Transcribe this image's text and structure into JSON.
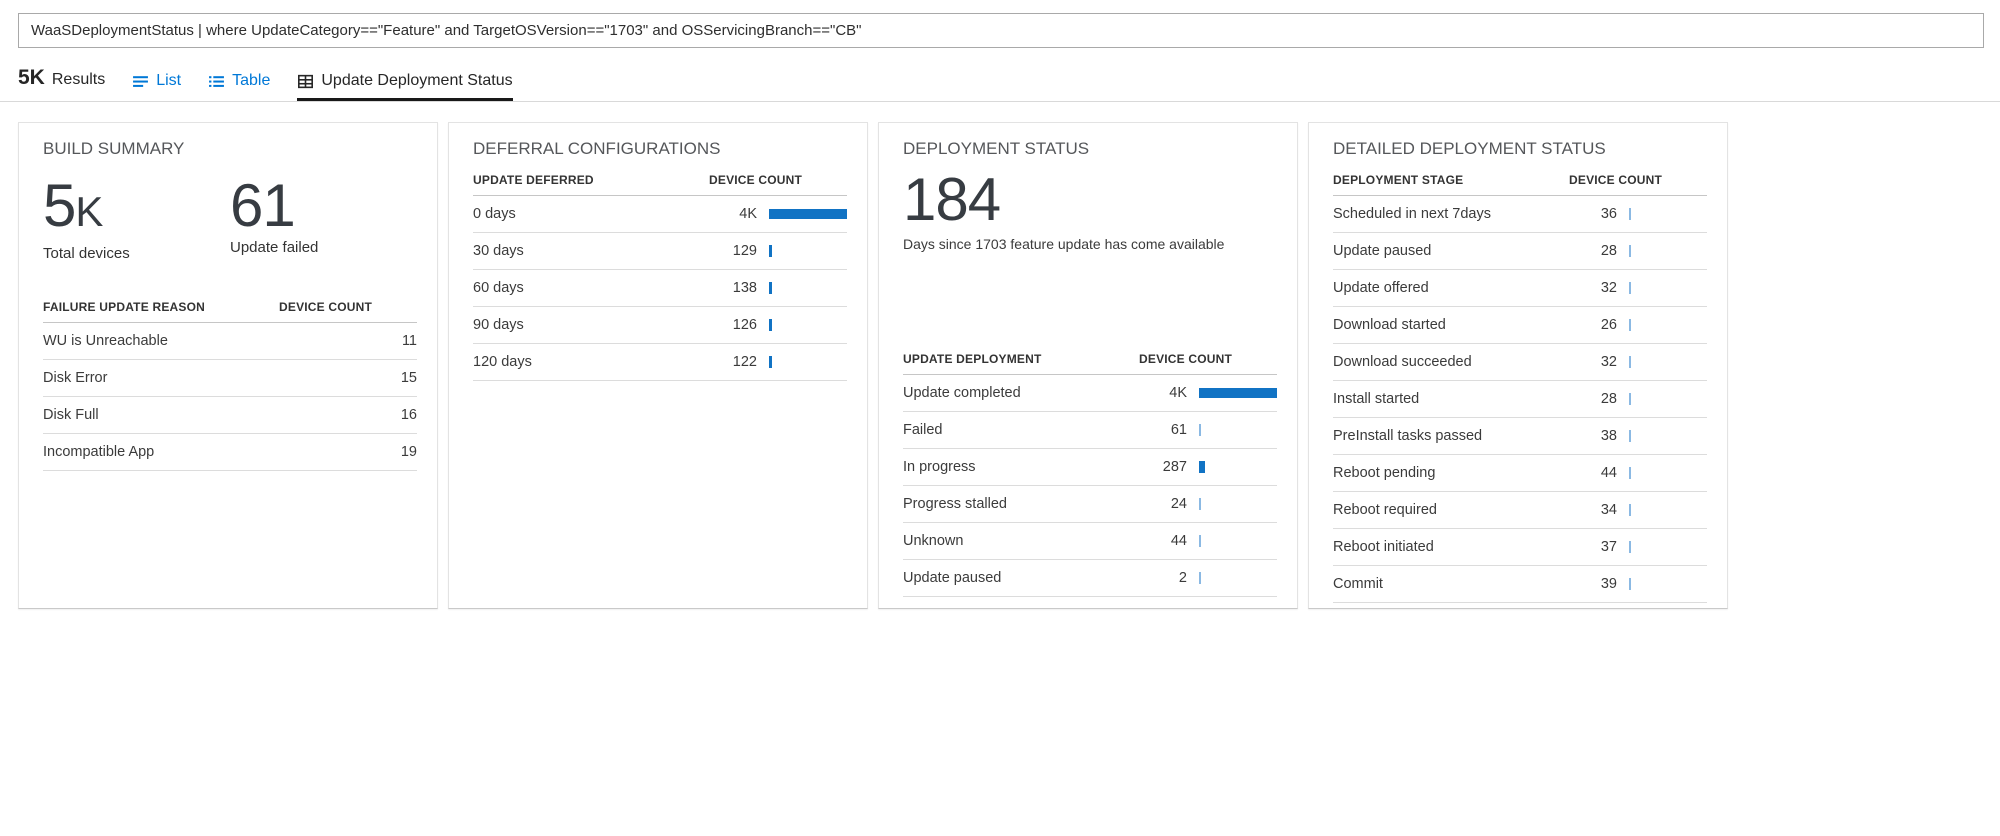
{
  "query_bar": {
    "query": "WaaSDeploymentStatus | where UpdateCategory==\"Feature\" and TargetOSVersion==\"1703\" and OSServicingBranch==\"CB\""
  },
  "tabs": {
    "results_count": "5K",
    "results_label": "Results",
    "list_label": "List",
    "table_label": "Table",
    "active_tab_label": "Update Deployment Status"
  },
  "colors": {
    "accent_blue": "#0078d7",
    "bar_blue": "#1173c4",
    "bar_blue_light": "#8bb9e3",
    "active_tab_underline": "#191919"
  },
  "bar_scale_max": 4000,
  "panels": {
    "build_summary": {
      "title": "BUILD SUMMARY",
      "metrics": [
        {
          "value": "5K",
          "label": "Total devices"
        },
        {
          "value": "61",
          "label": "Update failed"
        }
      ],
      "table": {
        "bars": false,
        "headers": [
          "FAILURE UPDATE REASON",
          "DEVICE COUNT"
        ],
        "rows": [
          {
            "label": "WU is Unreachable",
            "count": "11"
          },
          {
            "label": "Disk Error",
            "count": "15"
          },
          {
            "label": "Disk Full",
            "count": "16"
          },
          {
            "label": "Incompatible App",
            "count": "19"
          }
        ]
      }
    },
    "deferral_configurations": {
      "title": "DEFERRAL CONFIGURATIONS",
      "table": {
        "bars": true,
        "headers": [
          "UPDATE DEFERRED",
          "DEVICE COUNT"
        ],
        "rows": [
          {
            "label": "0 days",
            "count": "4K",
            "value": 4000
          },
          {
            "label": "30 days",
            "count": "129",
            "value": 129
          },
          {
            "label": "60 days",
            "count": "138",
            "value": 138
          },
          {
            "label": "90 days",
            "count": "126",
            "value": 126
          },
          {
            "label": "120 days",
            "count": "122",
            "value": 122
          }
        ]
      }
    },
    "deployment_status": {
      "title": "DEPLOYMENT STATUS",
      "big_number": "184",
      "caption": "Days since 1703 feature update has come available",
      "table": {
        "bars": true,
        "headers": [
          "UPDATE DEPLOYMENT",
          "DEVICE COUNT"
        ],
        "rows": [
          {
            "label": "Update completed",
            "count": "4K",
            "value": 4000
          },
          {
            "label": "Failed",
            "count": "61",
            "value": 61
          },
          {
            "label": "In progress",
            "count": "287",
            "value": 287
          },
          {
            "label": "Progress stalled",
            "count": "24",
            "value": 24
          },
          {
            "label": "Unknown",
            "count": "44",
            "value": 44
          },
          {
            "label": "Update paused",
            "count": "2",
            "value": 2
          }
        ]
      }
    },
    "detailed_deployment_status": {
      "title": "DETAILED DEPLOYMENT STATUS",
      "table": {
        "bars": true,
        "headers": [
          "DEPLOYMENT STAGE",
          "DEVICE COUNT"
        ],
        "rows": [
          {
            "label": "Scheduled in next 7days",
            "count": "36",
            "value": 36
          },
          {
            "label": "Update paused",
            "count": "28",
            "value": 28
          },
          {
            "label": "Update offered",
            "count": "32",
            "value": 32
          },
          {
            "label": "Download started",
            "count": "26",
            "value": 26
          },
          {
            "label": "Download succeeded",
            "count": "32",
            "value": 32
          },
          {
            "label": "Install started",
            "count": "28",
            "value": 28
          },
          {
            "label": "PreInstall tasks passed",
            "count": "38",
            "value": 38
          },
          {
            "label": "Reboot pending",
            "count": "44",
            "value": 44
          },
          {
            "label": "Reboot required",
            "count": "34",
            "value": 34
          },
          {
            "label": "Reboot initiated",
            "count": "37",
            "value": 37
          },
          {
            "label": "Commit",
            "count": "39",
            "value": 39
          }
        ]
      }
    }
  }
}
